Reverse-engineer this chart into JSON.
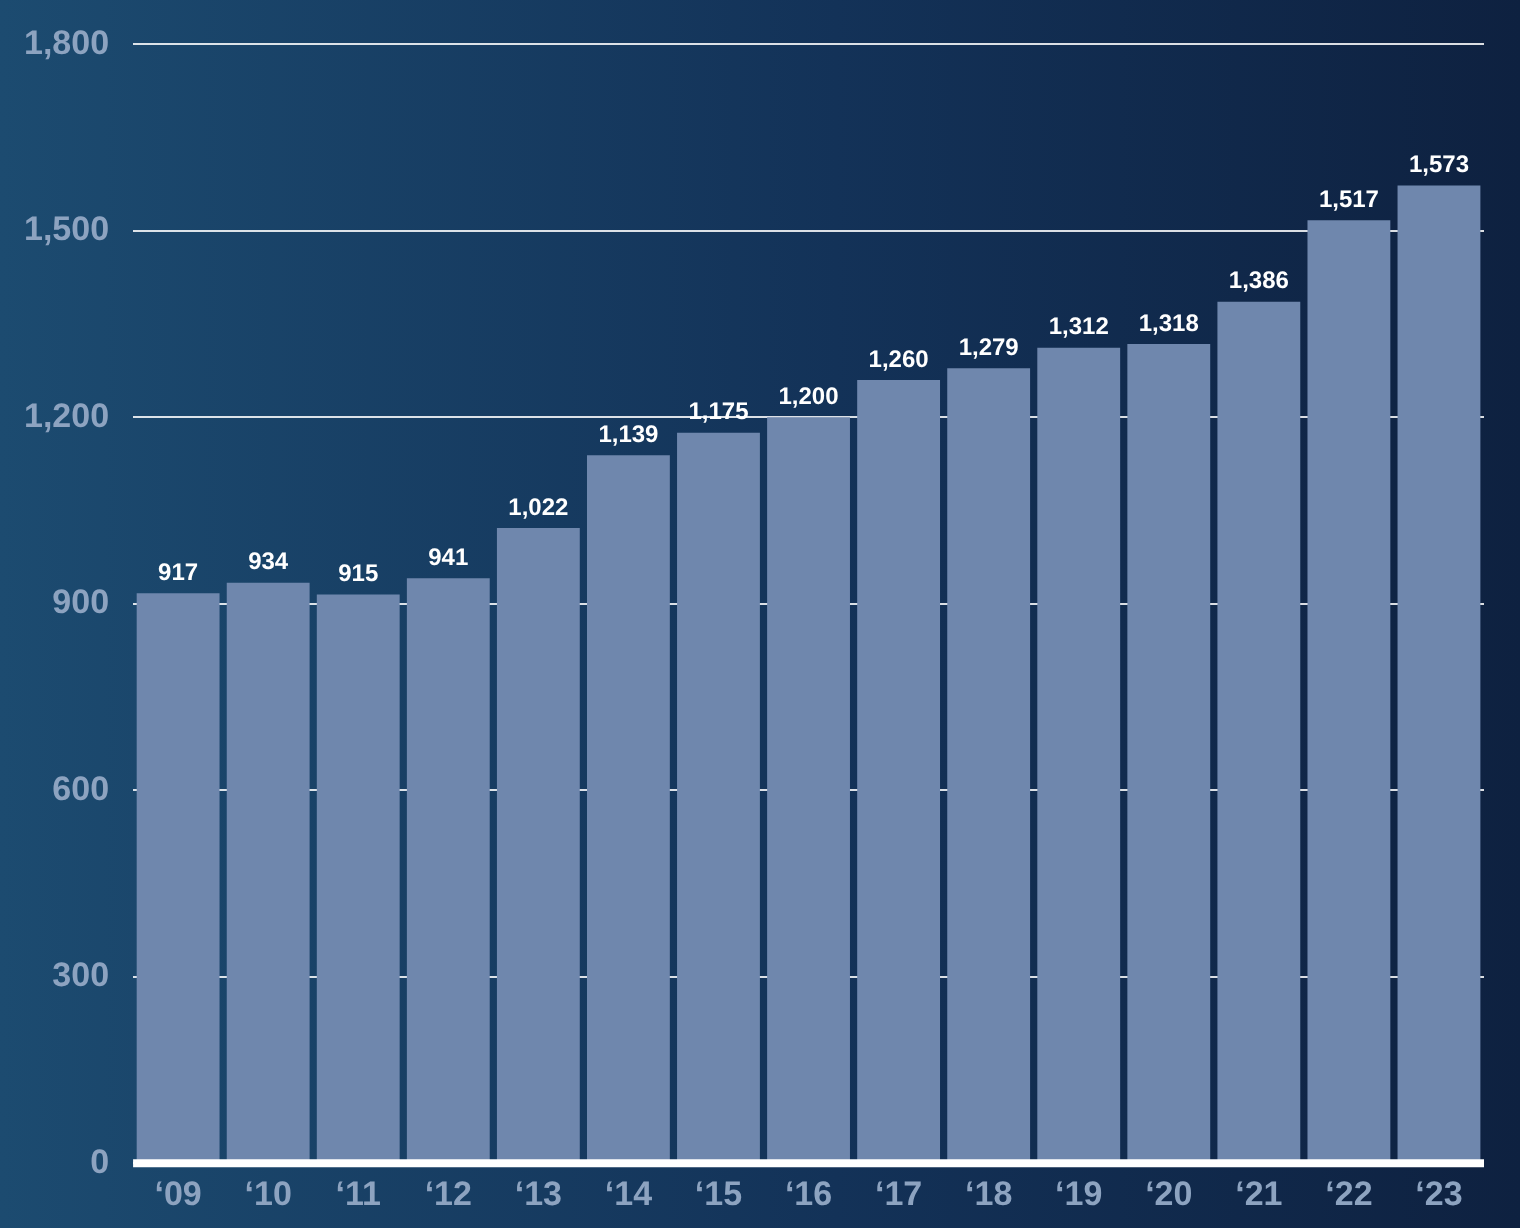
{
  "chart_data": {
    "type": "bar",
    "categories": [
      "‘09",
      "‘10",
      "‘11",
      "‘12",
      "‘13",
      "‘14",
      "‘15",
      "‘16",
      "‘17",
      "‘18",
      "‘19",
      "‘20",
      "‘21",
      "‘22",
      "‘23"
    ],
    "values": [
      917,
      934,
      915,
      941,
      1022,
      1139,
      1175,
      1200,
      1260,
      1279,
      1312,
      1318,
      1386,
      1517,
      1573
    ],
    "value_labels": [
      "917",
      "934",
      "915",
      "941",
      "1,022",
      "1,139",
      "1,175",
      "1,200",
      "1,260",
      "1,279",
      "1,312",
      "1,318",
      "1,386",
      "1,517",
      "1,573"
    ],
    "color": "#6f87ad",
    "ylim": [
      0,
      1800
    ],
    "yticks": [
      0,
      300,
      600,
      900,
      {
        "value": 1200,
        "label": "1,200"
      },
      {
        "value": 1500,
        "label": "1,500"
      },
      {
        "value": 1800,
        "label": "1,800"
      }
    ],
    "grid": "y",
    "legend": false
  }
}
